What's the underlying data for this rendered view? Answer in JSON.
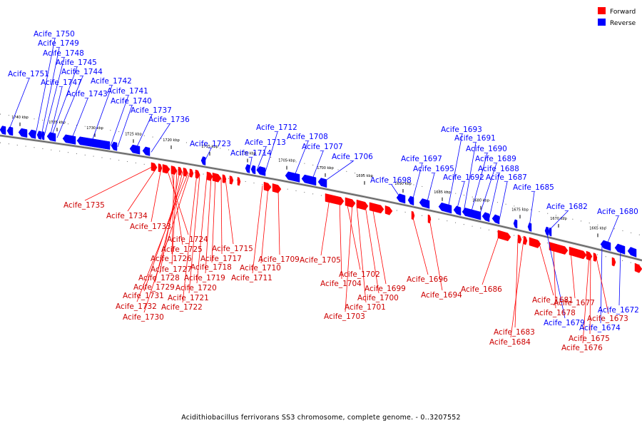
{
  "caption": "Acidithiobacillus ferrivorans SS3 chromosome, complete genome. - 0..3207552",
  "legend": [
    {
      "label": "Forward",
      "color": "#ff0000"
    },
    {
      "label": "Reverse",
      "color": "#0000ff"
    }
  ],
  "colors": {
    "forward": "#ff0000",
    "reverse": "#0000ff",
    "backbone": "#777777"
  },
  "ticks": [
    "1740 kbp",
    "1735 kbp",
    "1730 kbp",
    "1725 kbp",
    "1720 kbp",
    "1715 kbp",
    "1710 kbp",
    "1705 kbp",
    "1700 kbp",
    "1695 kbp",
    "1690 kbp",
    "1685 kbp",
    "1680 kbp",
    "1675 kbp",
    "1670 kbp",
    "1665 kbp"
  ],
  "genes_reverse": [
    "Acife_1751",
    "Acife_1750",
    "Acife_1749",
    "Acife_1748",
    "Acife_1747",
    "Acife_1745",
    "Acife_1744",
    "Acife_1743",
    "Acife_1742",
    "Acife_1741",
    "Acife_1740",
    "Acife_1737",
    "Acife_1736",
    "Acife_1723",
    "Acife_1714",
    "Acife_1713",
    "Acife_1712",
    "Acife_1708",
    "Acife_1707",
    "Acife_1706",
    "Acife_1698",
    "Acife_1697",
    "Acife_1695",
    "Acife_1693",
    "Acife_1692",
    "Acife_1691",
    "Acife_1690",
    "Acife_1689",
    "Acife_1688",
    "Acife_1687",
    "Acife_1685",
    "Acife_1682",
    "Acife_1680",
    "Acife_1679",
    "Acife_1674",
    "Acife_1672"
  ],
  "genes_forward": [
    "Acife_1735",
    "Acife_1734",
    "Acife_1733",
    "Acife_1724",
    "Acife_1725",
    "Acife_1726",
    "Acife_1727",
    "Acife_1728",
    "Acife_1729",
    "Acife_1731",
    "Acife_1732",
    "Acife_1730",
    "Acife_1715",
    "Acife_1717",
    "Acife_1718",
    "Acife_1719",
    "Acife_1720",
    "Acife_1721",
    "Acife_1722",
    "Acife_1709",
    "Acife_1710",
    "Acife_1711",
    "Acife_1705",
    "Acife_1702",
    "Acife_1704",
    "Acife_1699",
    "Acife_1700",
    "Acife_1701",
    "Acife_1703",
    "Acife_1696",
    "Acife_1694",
    "Acife_1686",
    "Acife_1681",
    "Acife_1683",
    "Acife_1684",
    "Acife_1678",
    "Acife_1677",
    "Acife_1673",
    "Acife_1675",
    "Acife_1676"
  ]
}
